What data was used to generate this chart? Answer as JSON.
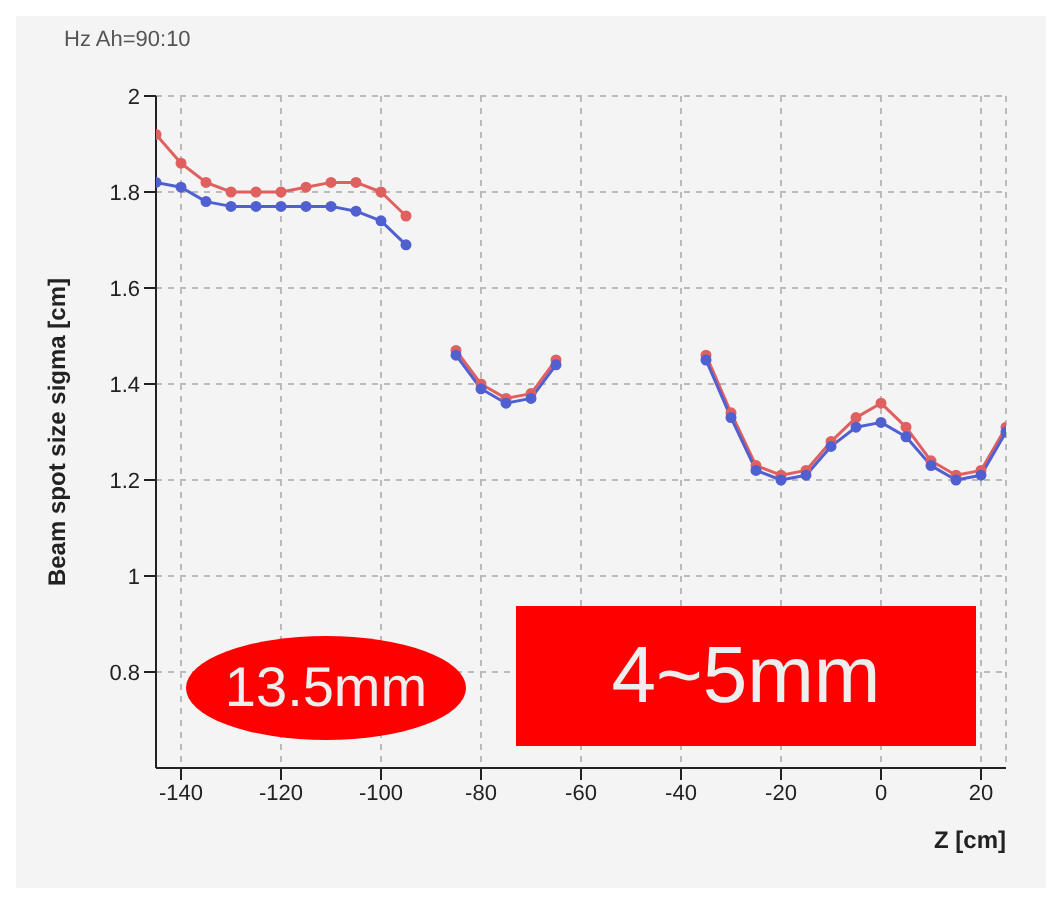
{
  "chart_data": {
    "type": "line",
    "title": "Hz Ah=90:10",
    "xlabel": "Z [cm]",
    "ylabel": "Beam spot size sigma [cm]",
    "xlim": [
      -145,
      25
    ],
    "xticks": [
      -140,
      -120,
      -100,
      -80,
      -60,
      -40,
      -20,
      0,
      20
    ],
    "ylim": [
      0.6,
      2
    ],
    "yticks": [
      0.8,
      1,
      1.2,
      1.4,
      1.6,
      1.8,
      2
    ],
    "grid": true,
    "marker": "circle",
    "annotations": [
      "4~5mm",
      "13.5mm"
    ],
    "series": [
      {
        "color": "#e06060",
        "x": [
          -145,
          -140,
          -135,
          -130,
          -125,
          -120,
          -115,
          -110,
          -105,
          -100,
          -95,
          -90,
          -85,
          -80,
          -75,
          -70,
          -65,
          -60,
          -35,
          -30,
          -25,
          -20,
          -15,
          -10,
          -5,
          0,
          5,
          10,
          15,
          20,
          25
        ],
        "values": [
          1.92,
          1.86,
          1.82,
          1.8,
          1.8,
          1.8,
          1.81,
          1.82,
          1.82,
          1.8,
          1.75,
          null,
          1.47,
          1.4,
          1.37,
          1.38,
          1.45,
          null,
          1.46,
          1.34,
          1.23,
          1.21,
          1.22,
          1.28,
          1.33,
          1.36,
          1.31,
          1.24,
          1.21,
          1.22,
          1.31
        ]
      },
      {
        "color": "#5060d0",
        "x": [
          -145,
          -140,
          -135,
          -130,
          -125,
          -120,
          -115,
          -110,
          -105,
          -100,
          -95,
          -90,
          -85,
          -80,
          -75,
          -70,
          -65,
          -60,
          -35,
          -30,
          -25,
          -20,
          -15,
          -10,
          -5,
          0,
          5,
          10,
          15,
          20,
          25
        ],
        "values": [
          1.82,
          1.81,
          1.78,
          1.77,
          1.77,
          1.77,
          1.77,
          1.77,
          1.76,
          1.74,
          1.69,
          null,
          1.46,
          1.39,
          1.36,
          1.37,
          1.44,
          null,
          1.45,
          1.33,
          1.22,
          1.2,
          1.21,
          1.27,
          1.31,
          1.32,
          1.29,
          1.23,
          1.2,
          1.21,
          1.3
        ]
      }
    ]
  }
}
